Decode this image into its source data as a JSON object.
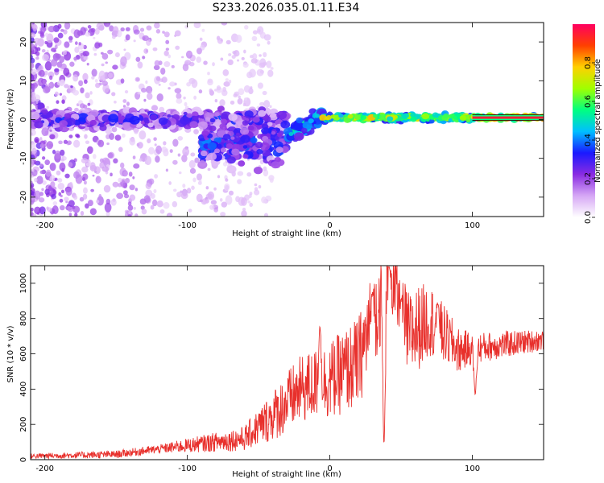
{
  "title": "S233.2026.035.01.11.E34",
  "chart_data": [
    {
      "type": "heatmap",
      "name": "spectrogram",
      "xlabel": "Height of straight line (km)",
      "ylabel": "Frequency (Hz)",
      "xlim": [
        -210,
        150
      ],
      "ylim": [
        -25,
        25
      ],
      "xticks": [
        -200,
        -100,
        0,
        100
      ],
      "yticks": [
        -20,
        -10,
        0,
        10,
        20
      ],
      "colorbar": {
        "label": "Normalized spectral amplitude",
        "range": [
          0,
          1
        ],
        "ticks": [
          "0.0",
          "0.2",
          "0.4",
          "0.6",
          "0.8"
        ],
        "colors": [
          "#ffffff",
          "#d6a8f5",
          "#8a2be2",
          "#1a1aff",
          "#00bfff",
          "#00ff80",
          "#a0ff00",
          "#ffd000",
          "#ff4000",
          "#ff0060"
        ]
      },
      "ridge_segments": [
        {
          "x_from": -210,
          "x_to": -30,
          "center_hz": 0,
          "spread_hz": 3,
          "amplitude": 0.25,
          "note": "noisy low-amplitude scatter"
        },
        {
          "x_from": -90,
          "x_to": -30,
          "center_hz": -6,
          "spread_hz": 8,
          "amplitude": 0.3,
          "note": "downward smear"
        },
        {
          "x_from": -30,
          "x_to": -5,
          "center_hz": -2,
          "spread_hz": 3,
          "amplitude": 0.45
        },
        {
          "x_from": -5,
          "x_to": 100,
          "center_hz": 0.5,
          "spread_hz": 1.2,
          "amplitude": 0.7
        },
        {
          "x_from": 100,
          "x_to": 150,
          "center_hz": 0.5,
          "spread_hz": 0.8,
          "amplitude": 0.95
        }
      ]
    },
    {
      "type": "line",
      "name": "snr",
      "xlabel": "Height of straight line (km)",
      "ylabel": "SNR (10 * v/v)",
      "xlim": [
        -210,
        150
      ],
      "ylim": [
        0,
        1100
      ],
      "xticks": [
        -200,
        -100,
        0,
        100
      ],
      "yticks": [
        0,
        200,
        400,
        600,
        800,
        1000
      ],
      "color": "#e8302c",
      "envelope": [
        {
          "x": -210,
          "y": 20
        },
        {
          "x": -150,
          "y": 30
        },
        {
          "x": -120,
          "y": 60
        },
        {
          "x": -100,
          "y": 80
        },
        {
          "x": -60,
          "y": 120
        },
        {
          "x": -40,
          "y": 250
        },
        {
          "x": -20,
          "y": 400
        },
        {
          "x": 0,
          "y": 450
        },
        {
          "x": 20,
          "y": 550
        },
        {
          "x": 30,
          "y": 800
        },
        {
          "x": 42,
          "y": 1050
        },
        {
          "x": 55,
          "y": 700
        },
        {
          "x": 70,
          "y": 800
        },
        {
          "x": 90,
          "y": 620
        },
        {
          "x": 110,
          "y": 640
        },
        {
          "x": 150,
          "y": 680
        }
      ],
      "noise_amplitude": [
        {
          "x": -210,
          "y": 15
        },
        {
          "x": -120,
          "y": 25
        },
        {
          "x": -60,
          "y": 70
        },
        {
          "x": -30,
          "y": 180
        },
        {
          "x": 0,
          "y": 220
        },
        {
          "x": 30,
          "y": 280
        },
        {
          "x": 60,
          "y": 250
        },
        {
          "x": 100,
          "y": 90
        },
        {
          "x": 150,
          "y": 60
        }
      ],
      "spikes": [
        {
          "x": -7,
          "y": 755
        },
        {
          "x": 30,
          "y": 950
        },
        {
          "x": 42,
          "y": 1080
        },
        {
          "x": 50,
          "y": 910
        },
        {
          "x": 76,
          "y": 880
        },
        {
          "x": 38,
          "y": 90
        },
        {
          "x": 102,
          "y": 370
        }
      ]
    }
  ]
}
